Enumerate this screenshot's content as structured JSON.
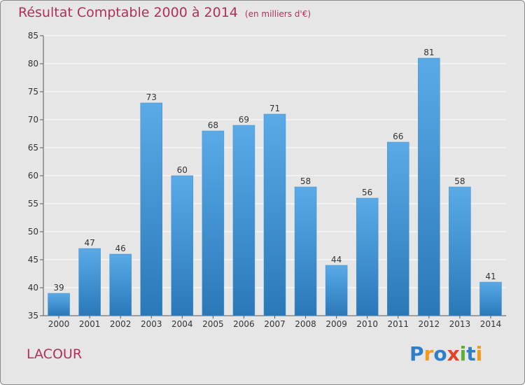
{
  "header": {
    "title": "Résultat Comptable 2000 à 2014",
    "unit": "(en milliers d'€)"
  },
  "footer": {
    "town": "LACOUR",
    "logo_letters": [
      "P",
      "r",
      "o",
      "x",
      "i",
      "t",
      "i"
    ]
  },
  "colors": {
    "title": "#b0305a",
    "bar_top": "#5aaae8",
    "bar_bottom": "#2a78b8",
    "background": "#e6e6e6"
  },
  "chart_data": {
    "type": "bar",
    "categories": [
      "2000",
      "2001",
      "2002",
      "2003",
      "2004",
      "2005",
      "2006",
      "2007",
      "2008",
      "2009",
      "2010",
      "2011",
      "2012",
      "2013",
      "2014"
    ],
    "values": [
      39,
      47,
      46,
      73,
      60,
      68,
      69,
      71,
      58,
      44,
      56,
      66,
      81,
      58,
      41
    ],
    "ylim": [
      35,
      85
    ],
    "yticks": [
      35,
      40,
      45,
      50,
      55,
      60,
      65,
      70,
      75,
      80,
      85
    ],
    "grid": true
  }
}
